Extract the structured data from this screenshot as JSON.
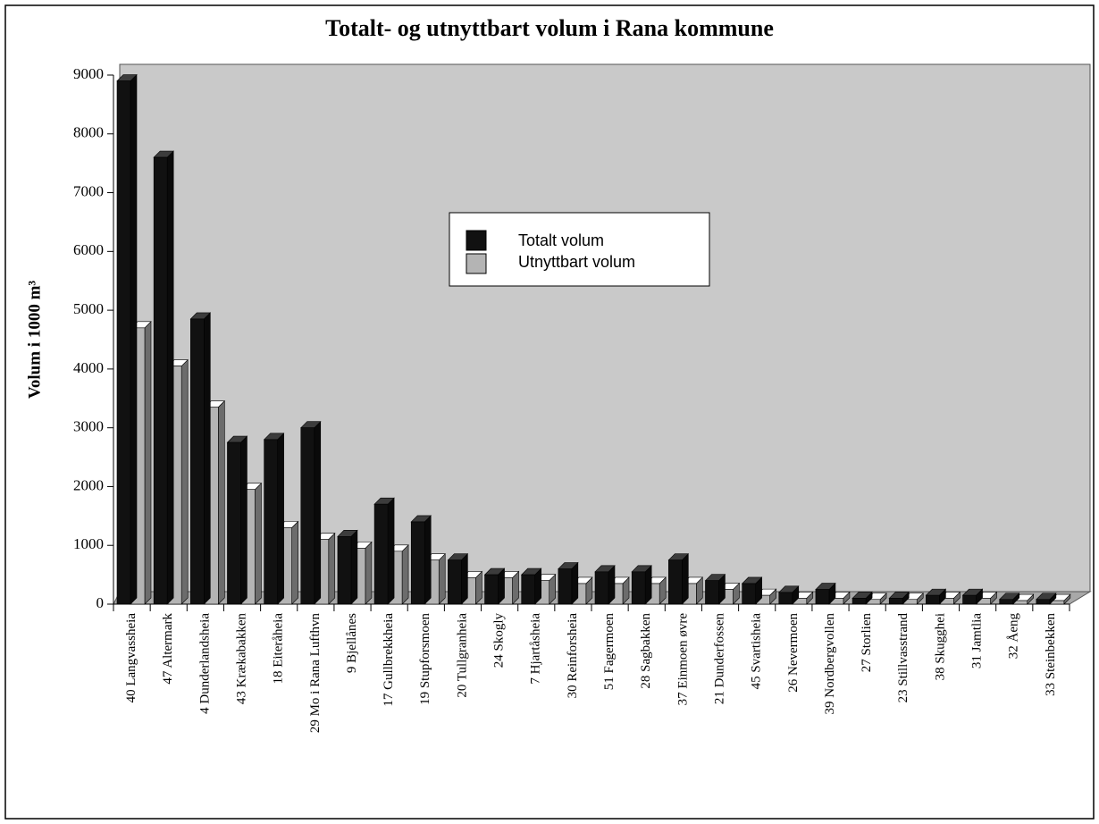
{
  "chart_data": {
    "type": "bar3d",
    "title": "Totalt- og utnyttbart volum i Rana kommune",
    "y_label": "Volum i 1000 m³",
    "categories": [
      "40 Langvassheia",
      "47 Altermark",
      "4 Dunderlandsheia",
      "43 Krækabakken",
      "18 Eiteråheia",
      "29 Mo i Rana Lufthvn",
      "9 Bjellånes",
      "17 Gullbrekkheia",
      "19 Stupforsmoen",
      "20 Tullgranheia",
      "24 Skogly",
      "7 Hjartåsheia",
      "30 Reinforsheia",
      "51 Fagermoen",
      "28 Sagbakken",
      "37 Einmoen øvre",
      "21 Dunderfossen",
      "45 Svartisheia",
      "26 Nevermoen",
      "39 Nordbergvollen",
      "27 Storlien",
      "23 Stillvasstrand",
      "38 Skugghei",
      "31 Jamtlia",
      "32 Åeng",
      "33 Steinbekken"
    ],
    "series": [
      {
        "name": "Totalt volum",
        "color": "#111111",
        "values": [
          8900,
          7600,
          4850,
          2750,
          2800,
          3000,
          1150,
          1700,
          1400,
          750,
          500,
          500,
          600,
          550,
          550,
          750,
          400,
          350,
          200,
          250,
          100,
          100,
          150,
          150,
          80,
          80
        ]
      },
      {
        "name": "Utnyttbart volum",
        "color": "#b4b4b4",
        "values": [
          4700,
          4050,
          3350,
          1950,
          1300,
          1100,
          950,
          900,
          750,
          450,
          450,
          400,
          350,
          350,
          350,
          350,
          250,
          150,
          100,
          100,
          80,
          80,
          100,
          100,
          60,
          60
        ]
      }
    ],
    "ylim": [
      0,
      9000
    ],
    "yticks": [
      0,
      1000,
      2000,
      3000,
      4000,
      5000,
      6000,
      7000,
      8000,
      9000
    ]
  }
}
